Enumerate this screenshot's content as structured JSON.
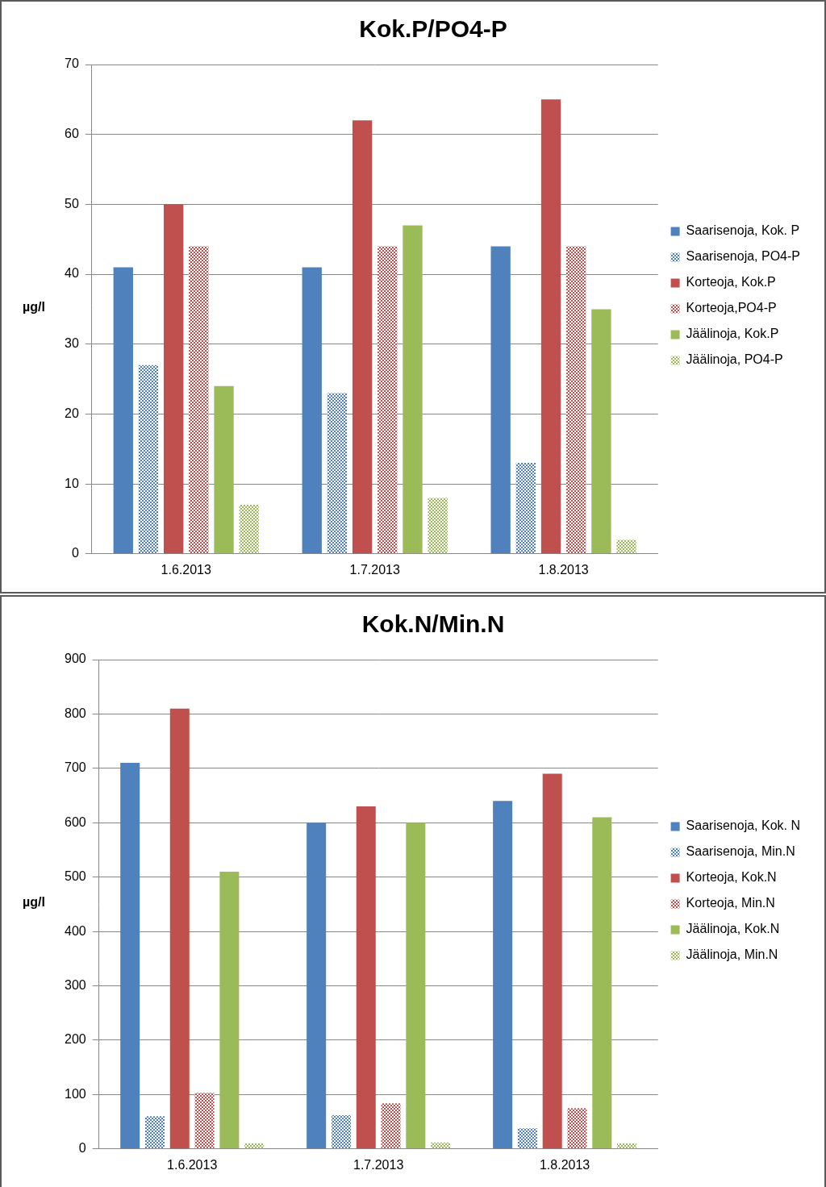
{
  "chart_data": [
    {
      "type": "bar",
      "title": "Kok.P/PO4-P",
      "y_label": "µg/l",
      "categories": [
        "1.6.2013",
        "1.7.2013",
        "1.8.2013"
      ],
      "series": [
        {
          "name": "Saarisenoja, Kok. P",
          "color": "#4f81bd",
          "values": [
            41,
            41,
            44
          ]
        },
        {
          "name": "Saarisenoja, PO4-P",
          "color": "#4f81bd",
          "values": [
            27,
            23,
            13
          ]
        },
        {
          "name": "Korteoja, Kok.P",
          "color": "#c0504d",
          "values": [
            50,
            62,
            65
          ]
        },
        {
          "name": "Korteoja,PO4-P",
          "color": "#c0504d",
          "values": [
            44,
            44,
            44
          ]
        },
        {
          "name": "Jäälinoja, Kok.P",
          "color": "#9bbb59",
          "values": [
            24,
            47,
            35
          ]
        },
        {
          "name": "Jäälinoja, PO4-P",
          "color": "#9bbb59",
          "values": [
            7,
            8,
            2
          ]
        }
      ],
      "ylim": [
        0,
        70
      ],
      "yticks": [
        0,
        10,
        20,
        30,
        40,
        50,
        60,
        70
      ],
      "grid": true,
      "legend": "right"
    },
    {
      "type": "bar",
      "title": "Kok.N/Min.N",
      "y_label": "µg/l",
      "categories": [
        "1.6.2013",
        "1.7.2013",
        "1.8.2013"
      ],
      "series": [
        {
          "name": "Saarisenoja, Kok. N",
          "color": "#4f81bd",
          "values": [
            710,
            600,
            640
          ]
        },
        {
          "name": "Saarisenoja, Min.N",
          "color": "#4f81bd",
          "values": [
            60,
            62,
            38
          ]
        },
        {
          "name": "Korteoja, Kok.N",
          "color": "#c0504d",
          "values": [
            810,
            630,
            690
          ]
        },
        {
          "name": "Korteoja, Min.N",
          "color": "#c0504d",
          "values": [
            103,
            84,
            75
          ]
        },
        {
          "name": "Jäälinoja, Kok.N",
          "color": "#9bbb59",
          "values": [
            510,
            600,
            610
          ]
        },
        {
          "name": "Jäälinoja, Min.N",
          "color": "#9bbb59",
          "values": [
            10,
            12,
            10
          ]
        }
      ],
      "ylim": [
        0,
        900
      ],
      "yticks": [
        0,
        100,
        200,
        300,
        400,
        500,
        600,
        700,
        800,
        900
      ],
      "grid": true,
      "legend": "right"
    }
  ]
}
